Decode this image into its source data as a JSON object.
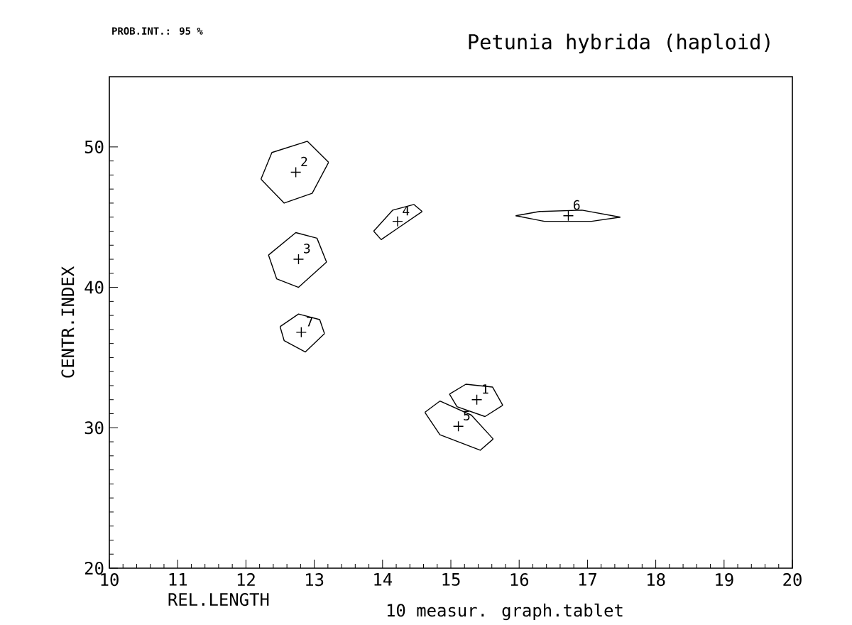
{
  "chart_data": {
    "type": "scatter",
    "title": "Petunia hybrida (haploid)",
    "xlabel": "REL.LENGTH",
    "ylabel": "CENTR.INDEX",
    "xlim": [
      10,
      20
    ],
    "ylim": [
      20,
      55
    ],
    "xticks": [
      10,
      11,
      12,
      13,
      14,
      15,
      16,
      17,
      18,
      19,
      20
    ],
    "yticks": [
      20,
      30,
      40,
      50
    ],
    "grid": false,
    "series": [
      {
        "type": "scatter",
        "marker": "cross",
        "color": "#000000",
        "x": [
          15.38,
          12.73,
          12.77,
          14.22,
          15.11,
          16.72,
          12.81
        ],
        "values": [
          32.0,
          48.2,
          42.0,
          44.7,
          30.1,
          45.1,
          36.8
        ]
      },
      {
        "type": "line",
        "color": "#000000",
        "x": [
          14.98,
          15.22,
          15.61,
          15.76
        ],
        "values": [
          32.4,
          33.1,
          32.9,
          31.6
        ]
      },
      {
        "type": "line",
        "color": "#000000",
        "x": [
          14.98,
          15.09,
          15.5,
          15.76
        ],
        "values": [
          32.4,
          31.5,
          30.8,
          31.6
        ]
      },
      {
        "type": "line",
        "color": "#000000",
        "x": [
          12.22,
          12.38,
          12.9,
          13.21
        ],
        "values": [
          47.7,
          49.6,
          50.4,
          48.9
        ]
      },
      {
        "type": "line",
        "color": "#000000",
        "x": [
          12.22,
          12.56,
          12.97,
          13.21
        ],
        "values": [
          47.7,
          46.0,
          46.7,
          48.9
        ]
      },
      {
        "type": "line",
        "color": "#000000",
        "x": [
          12.33,
          12.73,
          13.04,
          13.18
        ],
        "values": [
          42.3,
          43.9,
          43.5,
          41.8
        ]
      },
      {
        "type": "line",
        "color": "#000000",
        "x": [
          12.33,
          12.45,
          12.77,
          13.18
        ],
        "values": [
          42.3,
          40.6,
          40.0,
          41.8
        ]
      },
      {
        "type": "line",
        "color": "#000000",
        "x": [
          13.87,
          14.15,
          14.46,
          14.58
        ],
        "values": [
          44.0,
          45.5,
          45.9,
          45.4
        ]
      },
      {
        "type": "line",
        "color": "#000000",
        "x": [
          13.87,
          13.98,
          14.22,
          14.58
        ],
        "values": [
          44.0,
          43.4,
          44.2,
          45.4
        ]
      },
      {
        "type": "line",
        "color": "#000000",
        "x": [
          14.62,
          14.84,
          15.3,
          15.62
        ],
        "values": [
          31.1,
          31.9,
          30.9,
          29.2
        ]
      },
      {
        "type": "line",
        "color": "#000000",
        "x": [
          14.62,
          14.84,
          15.43,
          15.62
        ],
        "values": [
          31.1,
          29.5,
          28.4,
          29.2
        ]
      },
      {
        "type": "line",
        "color": "#000000",
        "x": [
          15.95,
          16.3,
          16.92,
          17.48
        ],
        "values": [
          45.1,
          45.4,
          45.5,
          45.0
        ]
      },
      {
        "type": "line",
        "color": "#000000",
        "x": [
          15.95,
          16.37,
          17.06,
          17.48
        ],
        "values": [
          45.1,
          44.7,
          44.7,
          45.0
        ]
      },
      {
        "type": "line",
        "color": "#000000",
        "x": [
          12.5,
          12.77,
          13.08,
          13.15
        ],
        "values": [
          37.2,
          38.1,
          37.7,
          36.7
        ]
      },
      {
        "type": "line",
        "color": "#000000",
        "x": [
          12.5,
          12.56,
          12.87,
          13.15
        ],
        "values": [
          37.2,
          36.2,
          35.4,
          36.7
        ]
      }
    ],
    "annotations": [
      "PROB.INT.: 95 %",
      "10 measur. graph.tablet",
      {
        "text": "1",
        "x": 15.38,
        "y": 32.0
      },
      {
        "text": "2",
        "x": 12.73,
        "y": 48.2
      },
      {
        "text": "3",
        "x": 12.77,
        "y": 42.0
      },
      {
        "text": "4",
        "x": 14.22,
        "y": 44.7
      },
      {
        "text": "5",
        "x": 15.11,
        "y": 30.1
      },
      {
        "text": "6",
        "x": 16.72,
        "y": 45.1
      },
      {
        "text": "7",
        "x": 12.81,
        "y": 36.8
      }
    ]
  }
}
